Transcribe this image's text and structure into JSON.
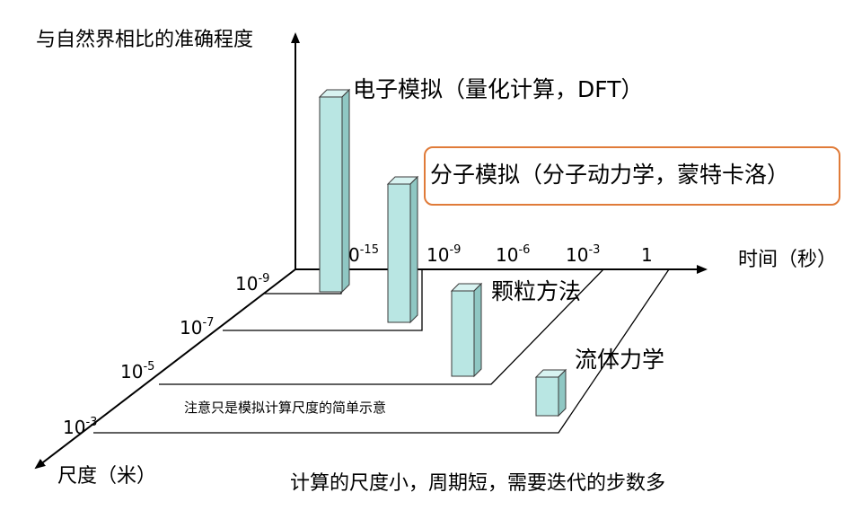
{
  "axes": {
    "y_label": "与自然界相比的准确程度",
    "x_label": "时间（秒）",
    "z_label": "尺度（米）"
  },
  "time_ticks": [
    {
      "base": "0",
      "exp": "-15"
    },
    {
      "base": "10",
      "exp": "-9"
    },
    {
      "base": "10",
      "exp": "-6"
    },
    {
      "base": "10",
      "exp": "-3"
    },
    {
      "base": "1",
      "exp": ""
    }
  ],
  "scale_ticks": [
    {
      "base": "10",
      "exp": "-9"
    },
    {
      "base": "10",
      "exp": "-7"
    },
    {
      "base": "10",
      "exp": "-5"
    },
    {
      "base": "10",
      "exp": "-3"
    }
  ],
  "methods": [
    {
      "name": "电子模拟（量化计算，DFT）",
      "highlighted": false
    },
    {
      "name": "分子模拟（分子动力学，蒙特卡洛）",
      "highlighted": true
    },
    {
      "name": "颗粒方法",
      "highlighted": false
    },
    {
      "name": "流体力学",
      "highlighted": false
    }
  ],
  "note": "注意只是模拟计算尺度的简单示意",
  "caption": "计算的尺度小，周期短，需要迭代的步数多",
  "colors": {
    "bar_front": "#b9e6e3",
    "bar_side": "#8fc7c3",
    "bar_top": "#d8f3f1",
    "highlight_border": "#e07b39"
  }
}
